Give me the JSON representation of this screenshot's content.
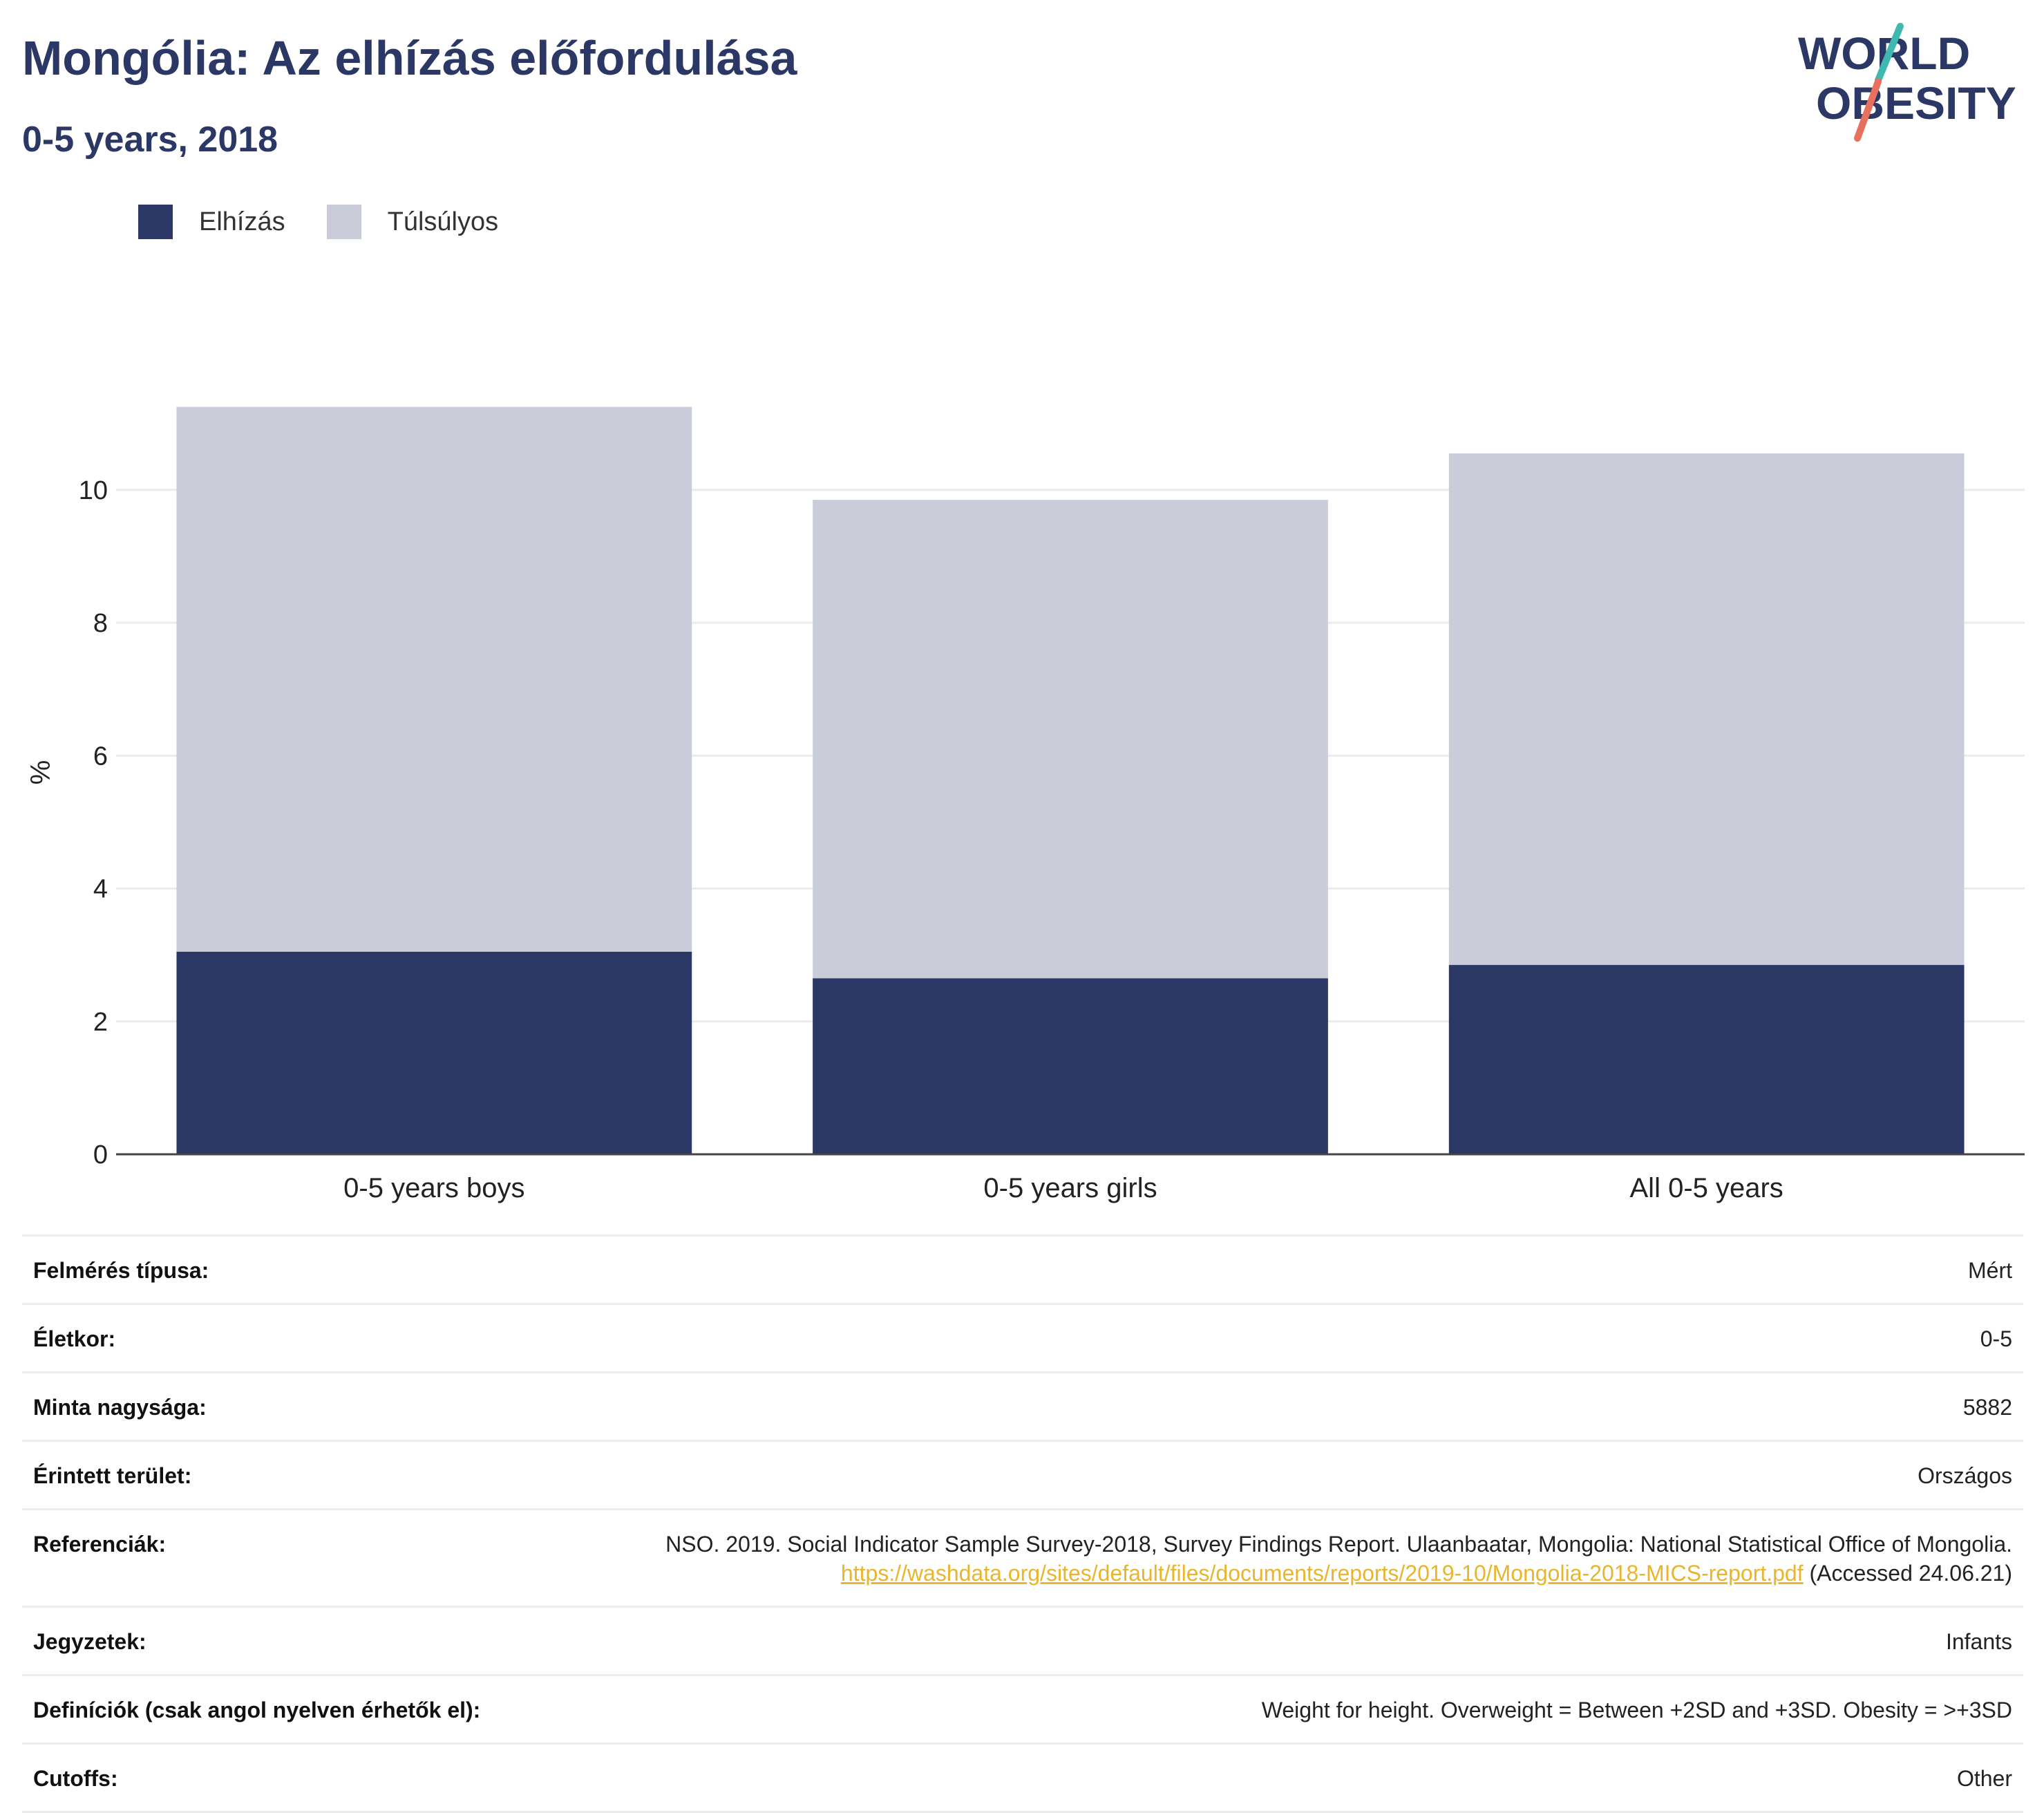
{
  "header": {
    "title": "Mongólia: Az elhízás előfordulása",
    "subtitle": "0-5 years, 2018"
  },
  "logo": {
    "line1": "WORLD",
    "line2": "OBESITY"
  },
  "colors": {
    "obesity": "#2b3764",
    "overweight": "#cacdd9",
    "grid": "#ebebeb",
    "axis": "#444444",
    "logo_teal": "#3fb8b0",
    "logo_coral": "#e8705e"
  },
  "legend": [
    {
      "label": "Elhízás",
      "color": "#2b3764"
    },
    {
      "label": "Túlsúlyos",
      "color": "#cacdd9"
    }
  ],
  "chart_data": {
    "type": "bar",
    "stacked": true,
    "categories": [
      "0-5 years boys",
      "0-5 years girls",
      "All 0-5 years"
    ],
    "series": [
      {
        "name": "Elhízás",
        "values": [
          3.05,
          2.65,
          2.85
        ]
      },
      {
        "name": "Túlsúlyos",
        "values": [
          8.2,
          7.2,
          7.7
        ]
      }
    ],
    "ylabel": "%",
    "ylim": [
      0,
      11.6
    ],
    "yticks": [
      0,
      2,
      4,
      6,
      8,
      10
    ],
    "grid": true,
    "legend_position": "top-left"
  },
  "info": {
    "rows": [
      {
        "key": "Felmérés típusa:",
        "value": "Mért"
      },
      {
        "key": "Életkor:",
        "value": "0-5"
      },
      {
        "key": "Minta nagysága:",
        "value": "5882"
      },
      {
        "key": "Érintett terület:",
        "value": "Országos"
      },
      {
        "key": "Referenciák:",
        "value": "NSO. 2019. Social Indicator Sample Survey-2018, Survey Findings Report. Ulaanbaatar, Mongolia: National Statistical Office of Mongolia.",
        "link": "https://washdata.org/sites/default/files/documents/reports/2019-10/Mongolia-2018-MICS-report.pdf",
        "suffix": "(Accessed 24.06.21)"
      },
      {
        "key": "Jegyzetek:",
        "value": "Infants"
      },
      {
        "key": "Definíciók (csak angol nyelven érhetők el):",
        "value": "Weight for height. Overweight = Between +2SD and +3SD. Obesity = >+3SD"
      },
      {
        "key": "Cutoffs:",
        "value": "Other"
      }
    ]
  }
}
